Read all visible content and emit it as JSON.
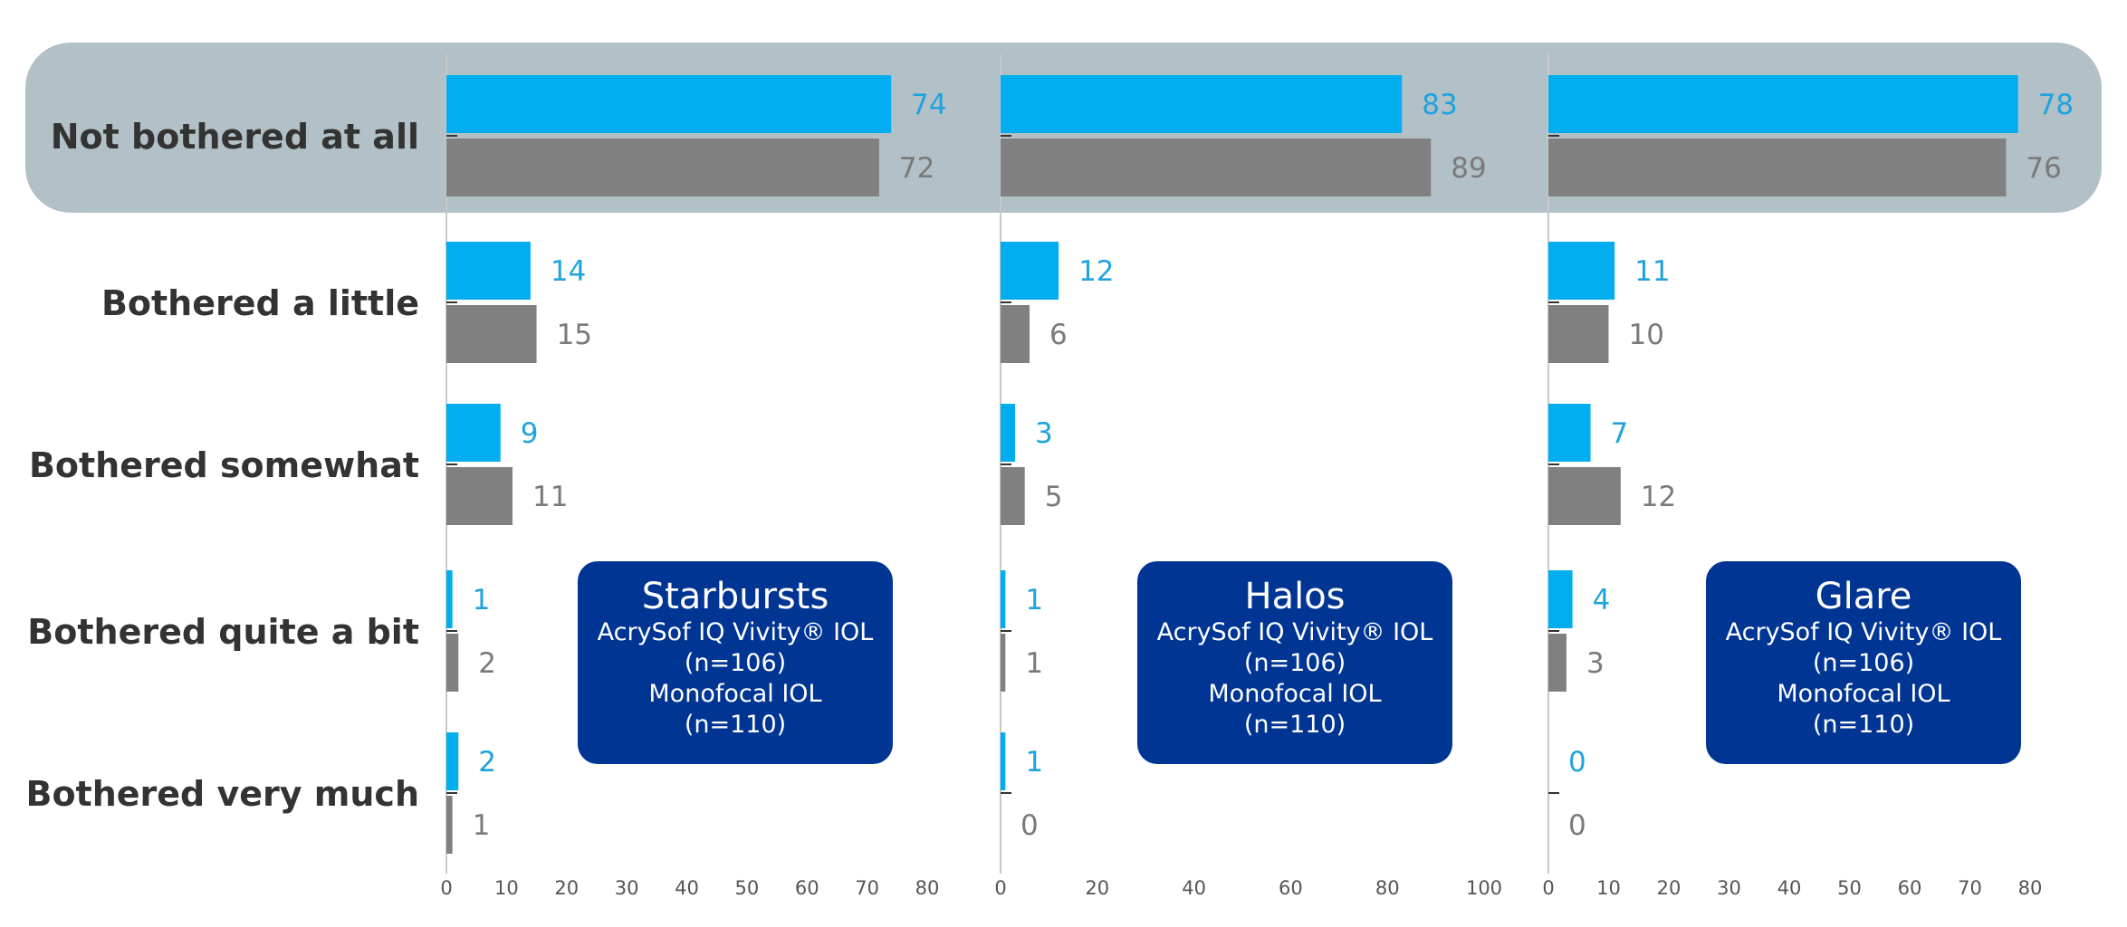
{
  "colors": {
    "treatment": "#00aeef",
    "control": "#808080",
    "highlight": "#b2c1c7",
    "legend_bg": "#003594"
  },
  "chart_data": {
    "type": "bar",
    "orientation": "horizontal",
    "categories": [
      "Not bothered at all",
      "Bothered a little",
      "Bothered somewhat",
      "Bothered quite a bit",
      "Bothered very much"
    ],
    "highlighted_category": "Not bothered at all",
    "panels": [
      {
        "title": "Starbursts",
        "legend_lines": [
          "AcrySof IQ Vivity® IOL",
          "(n=106)",
          "Monofocal IOL",
          "(n=110)"
        ],
        "xlim": [
          0,
          80
        ],
        "xticks": [
          0,
          10,
          20,
          30,
          40,
          50,
          60,
          70,
          80
        ],
        "series": [
          {
            "name": "AcrySof IQ Vivity® IOL",
            "values": [
              74,
              14,
              9,
              1,
              2
            ]
          },
          {
            "name": "Monofocal IOL",
            "values": [
              72,
              15,
              11,
              2,
              1
            ]
          }
        ]
      },
      {
        "title": "Halos",
        "legend_lines": [
          "AcrySof IQ Vivity® IOL",
          "(n=106)",
          "Monofocal IOL",
          "(n=110)"
        ],
        "xlim": [
          0,
          100
        ],
        "xticks": [
          0,
          20,
          40,
          60,
          80,
          100
        ],
        "series": [
          {
            "name": "AcrySof IQ Vivity® IOL",
            "values": [
              83,
              12,
              3,
              1,
              1
            ]
          },
          {
            "name": "Monofocal IOL",
            "values": [
              89,
              6,
              5,
              1,
              0
            ]
          }
        ]
      },
      {
        "title": "Glare",
        "legend_lines": [
          "AcrySof IQ Vivity® IOL",
          "(n=106)",
          "Monofocal IOL",
          "(n=110)"
        ],
        "xlim": [
          0,
          80
        ],
        "xticks": [
          0,
          10,
          20,
          30,
          40,
          50,
          60,
          70,
          80
        ],
        "series": [
          {
            "name": "AcrySof IQ Vivity® IOL",
            "values": [
              78,
              11,
              7,
              4,
              0
            ]
          },
          {
            "name": "Monofocal IOL",
            "values": [
              76,
              10,
              12,
              3,
              0
            ]
          }
        ]
      }
    ]
  }
}
